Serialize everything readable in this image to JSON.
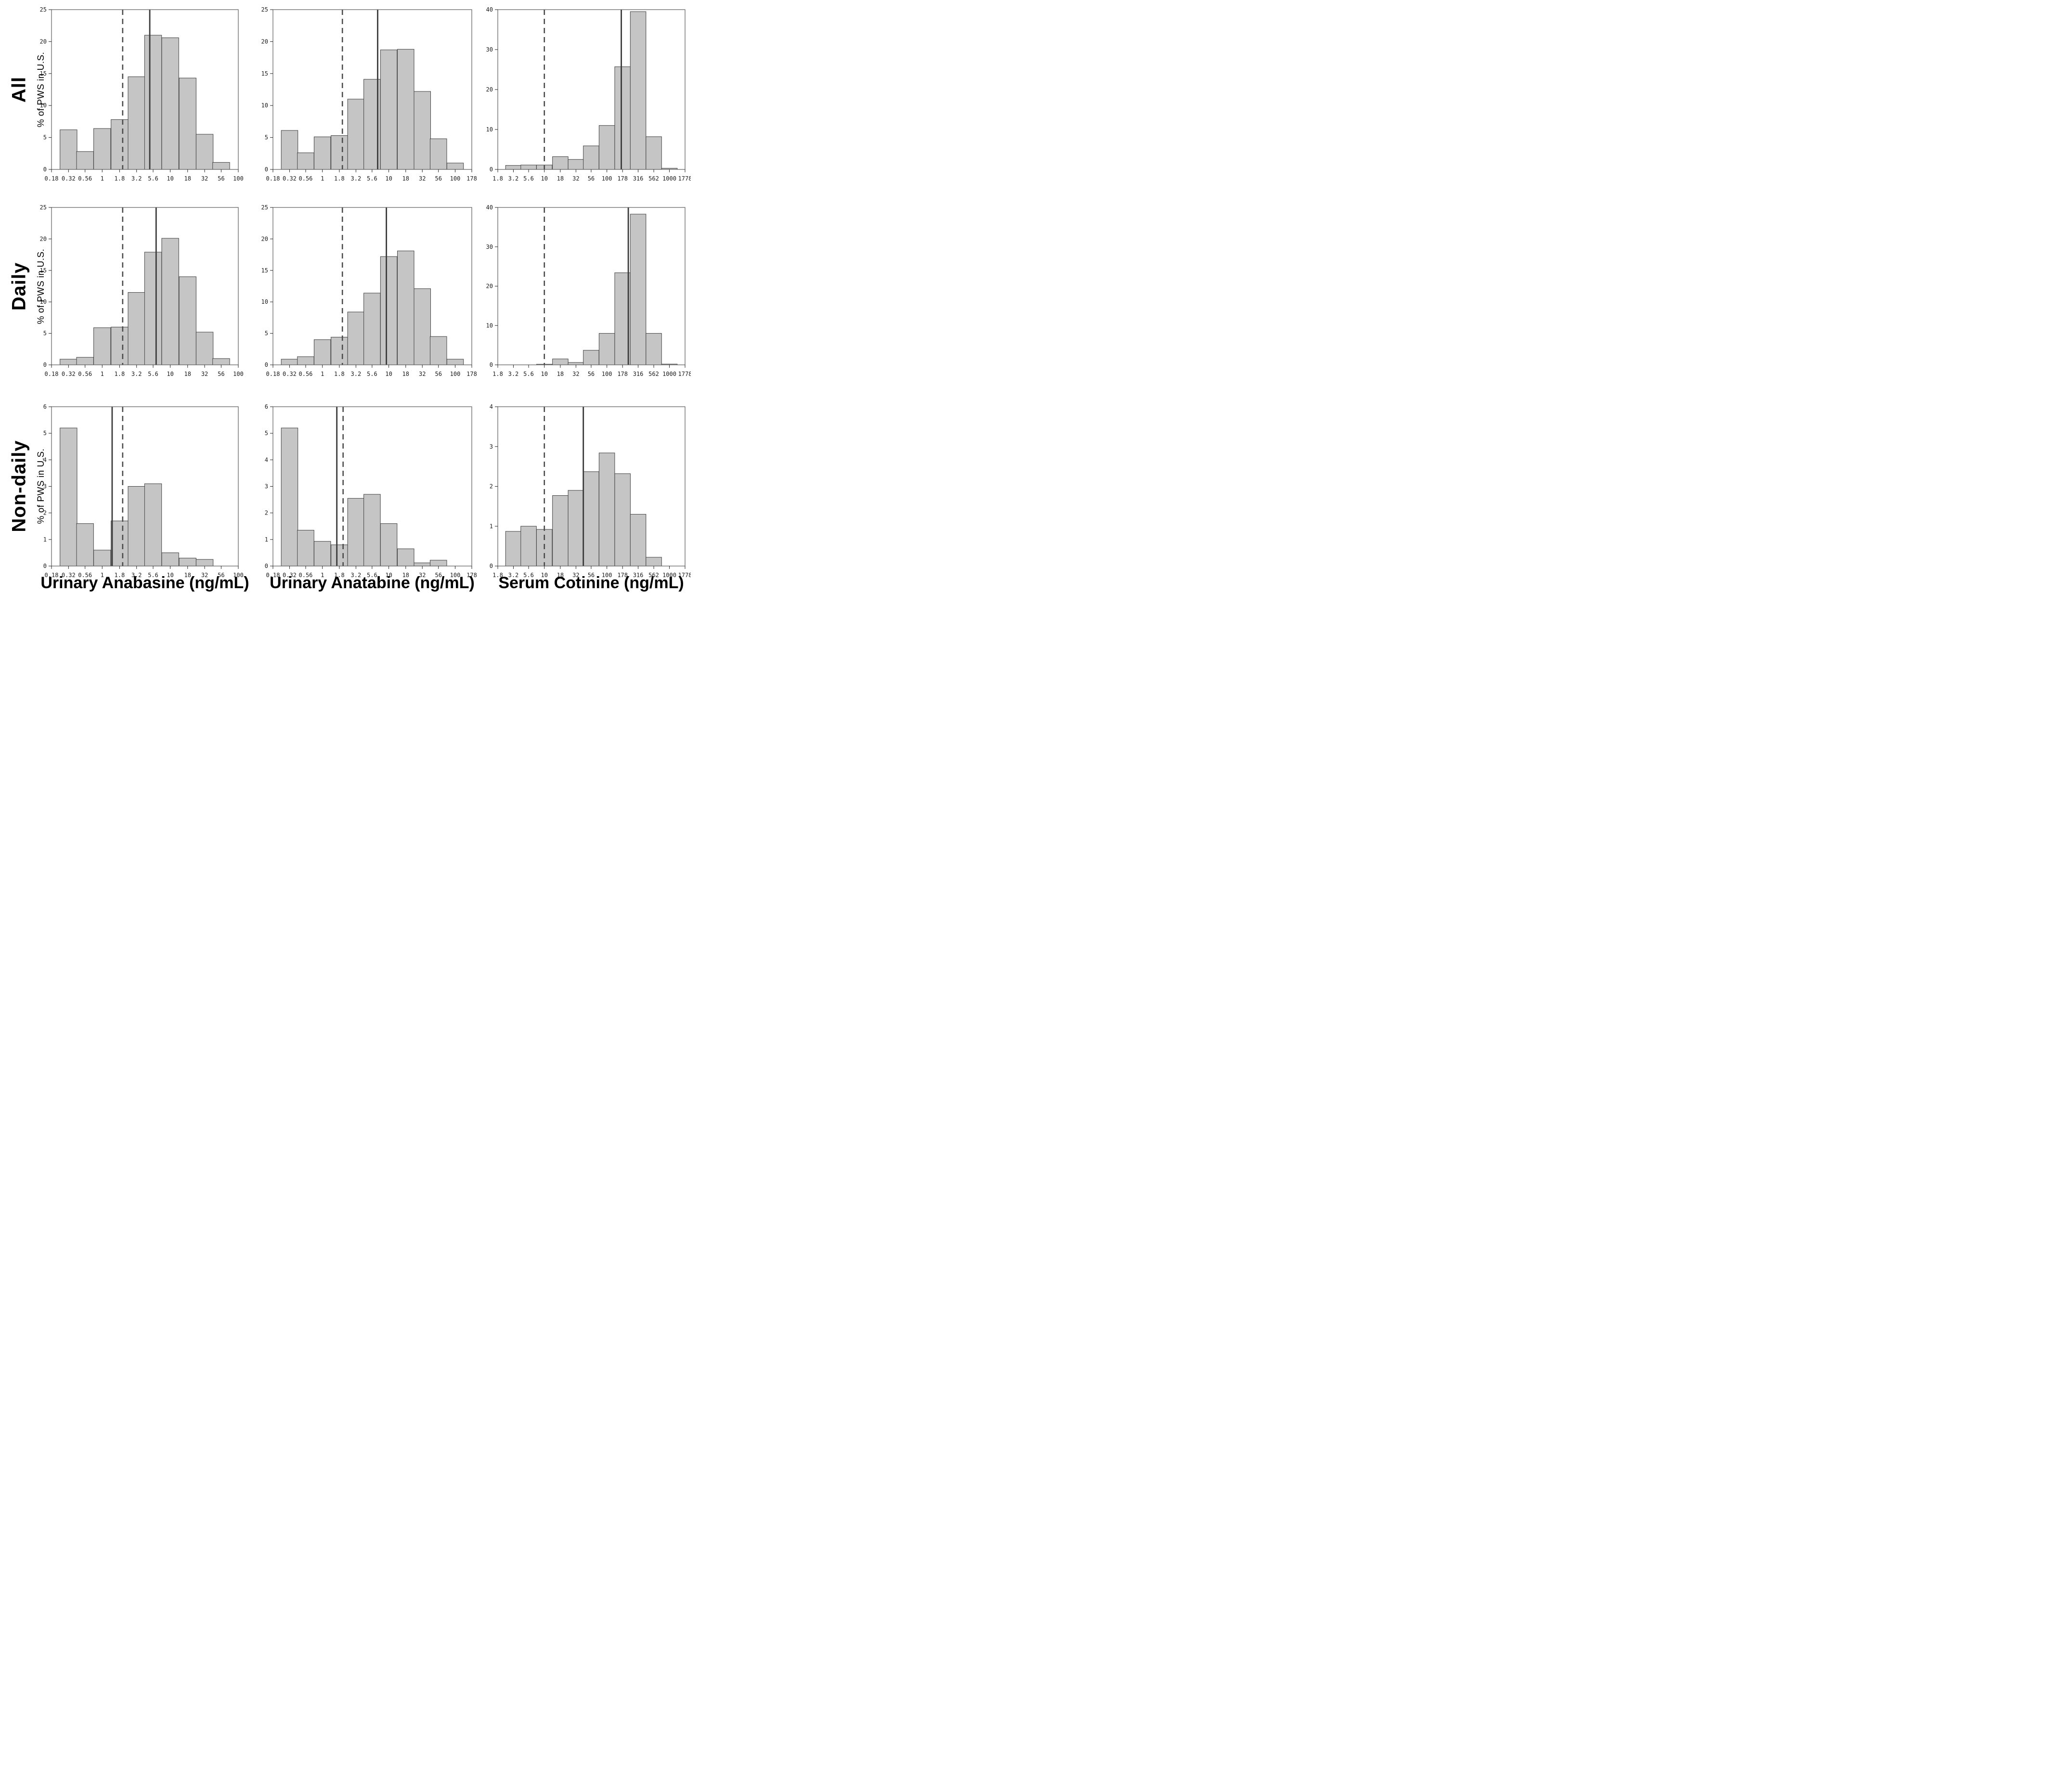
{
  "figure": {
    "row_labels": [
      "All",
      "Daily",
      "Non-daily"
    ],
    "y_axis_label": "% of PWS in U.S.",
    "column_titles": [
      "Urinary Anabasine (ng/mL)",
      "Urinary Anatabine (ng/mL)",
      "Serum Cotinine (ng/mL)"
    ],
    "colors": {
      "background": "#ffffff",
      "bar_fill": "#c5c5c5",
      "bar_stroke": "#3f3f3f",
      "ref_solid": "#3a3a3a",
      "ref_dashed": "#4a4a4a",
      "frame": "#5a5a5a",
      "tick": "#222222"
    }
  },
  "chart_data": [
    {
      "type": "bar",
      "row": "All",
      "column": "Urinary Anabasine (ng/mL)",
      "x_scale": "log",
      "grid": false,
      "x_ticks": [
        0.18,
        0.32,
        0.56,
        1,
        1.8,
        3.2,
        5.6,
        10,
        18,
        32,
        56,
        100
      ],
      "x_tick_labels": [
        "0.18",
        "0.32",
        "0.56",
        "1",
        "1.8",
        "3.2",
        "5.6",
        "10",
        "18",
        "32",
        "56",
        "100"
      ],
      "ylim": [
        0,
        25
      ],
      "y_ticks": [
        0,
        5,
        10,
        15,
        20,
        25
      ],
      "bin_centers": [
        0.32,
        0.56,
        1,
        1.8,
        3.2,
        5.6,
        10,
        18,
        32,
        56
      ],
      "values": [
        6.2,
        2.8,
        6.4,
        7.8,
        14.5,
        21.0,
        20.6,
        14.3,
        5.5,
        1.1
      ],
      "dashed_ref_x": 2.0,
      "solid_ref_x": 5.0
    },
    {
      "type": "bar",
      "row": "All",
      "column": "Urinary Anatabine (ng/mL)",
      "x_scale": "log",
      "grid": false,
      "x_ticks": [
        0.18,
        0.32,
        0.56,
        1,
        1.8,
        3.2,
        5.6,
        10,
        18,
        32,
        56,
        100,
        178
      ],
      "x_tick_labels": [
        "0.18",
        "0.32",
        "0.56",
        "1",
        "1.8",
        "3.2",
        "5.6",
        "10",
        "18",
        "32",
        "56",
        "100",
        "178"
      ],
      "ylim": [
        0,
        25
      ],
      "y_ticks": [
        0,
        5,
        10,
        15,
        20,
        25
      ],
      "bin_centers": [
        0.32,
        0.56,
        1,
        1.8,
        3.2,
        5.6,
        10,
        18,
        32,
        56,
        100
      ],
      "values": [
        6.1,
        2.6,
        5.1,
        5.3,
        11.0,
        14.1,
        18.7,
        18.8,
        12.2,
        4.8,
        1.0
      ],
      "dashed_ref_x": 2.0,
      "solid_ref_x": 6.8
    },
    {
      "type": "bar",
      "row": "All",
      "column": "Serum Cotinine (ng/mL)",
      "x_scale": "log",
      "grid": false,
      "x_ticks": [
        1.8,
        3.2,
        5.6,
        10,
        18,
        32,
        56,
        100,
        178,
        316,
        562,
        1000,
        1778
      ],
      "x_tick_labels": [
        "1.8",
        "3.2",
        "5.6",
        "10",
        "18",
        "32",
        "56",
        "100",
        "178",
        "316",
        "562",
        "1000",
        "1778"
      ],
      "ylim": [
        0,
        40
      ],
      "y_ticks": [
        0,
        10,
        20,
        30,
        40
      ],
      "bin_centers": [
        3.2,
        5.6,
        10,
        18,
        32,
        56,
        100,
        178,
        316,
        562,
        1000
      ],
      "values": [
        1.0,
        1.1,
        1.1,
        3.2,
        2.5,
        5.9,
        11.0,
        25.7,
        39.5,
        8.2,
        0.3
      ],
      "dashed_ref_x": 10,
      "solid_ref_x": 170
    },
    {
      "type": "bar",
      "row": "Daily",
      "column": "Urinary Anabasine (ng/mL)",
      "x_scale": "log",
      "grid": false,
      "x_ticks": [
        0.18,
        0.32,
        0.56,
        1,
        1.8,
        3.2,
        5.6,
        10,
        18,
        32,
        56,
        100
      ],
      "x_tick_labels": [
        "0.18",
        "0.32",
        "0.56",
        "1",
        "1.8",
        "3.2",
        "5.6",
        "10",
        "18",
        "32",
        "56",
        "100"
      ],
      "ylim": [
        0,
        25
      ],
      "y_ticks": [
        0,
        5,
        10,
        15,
        20,
        25
      ],
      "bin_centers": [
        0.32,
        0.56,
        1,
        1.8,
        3.2,
        5.6,
        10,
        18,
        32,
        56
      ],
      "values": [
        0.9,
        1.2,
        5.9,
        6.0,
        11.5,
        17.9,
        20.1,
        14.0,
        5.2,
        1.0
      ],
      "dashed_ref_x": 2.0,
      "solid_ref_x": 6.2
    },
    {
      "type": "bar",
      "row": "Daily",
      "column": "Urinary Anatabine (ng/mL)",
      "x_scale": "log",
      "grid": false,
      "x_ticks": [
        0.18,
        0.32,
        0.56,
        1,
        1.8,
        3.2,
        5.6,
        10,
        18,
        32,
        56,
        100,
        178
      ],
      "x_tick_labels": [
        "0.18",
        "0.32",
        "0.56",
        "1",
        "1.8",
        "3.2",
        "5.6",
        "10",
        "18",
        "32",
        "56",
        "100",
        "178"
      ],
      "ylim": [
        0,
        25
      ],
      "y_ticks": [
        0,
        5,
        10,
        15,
        20,
        25
      ],
      "bin_centers": [
        0.32,
        0.56,
        1,
        1.8,
        3.2,
        5.6,
        10,
        18,
        32,
        56,
        100
      ],
      "values": [
        0.9,
        1.3,
        4.0,
        4.4,
        8.4,
        11.4,
        17.2,
        18.1,
        12.1,
        4.5,
        0.9
      ],
      "dashed_ref_x": 2.0,
      "solid_ref_x": 9.2
    },
    {
      "type": "bar",
      "row": "Daily",
      "column": "Serum Cotinine (ng/mL)",
      "x_scale": "log",
      "grid": false,
      "x_ticks": [
        1.8,
        3.2,
        5.6,
        10,
        18,
        32,
        56,
        100,
        178,
        316,
        562,
        1000,
        1778
      ],
      "x_tick_labels": [
        "1.8",
        "3.2",
        "5.6",
        "10",
        "18",
        "32",
        "56",
        "100",
        "178",
        "316",
        "562",
        "1000",
        "1778"
      ],
      "ylim": [
        0,
        40
      ],
      "y_ticks": [
        0,
        10,
        20,
        30,
        40
      ],
      "bin_centers": [
        10,
        18,
        32,
        56,
        100,
        178,
        316,
        562,
        1000
      ],
      "values": [
        0.15,
        1.5,
        0.6,
        3.7,
        8.0,
        23.4,
        38.3,
        8.0,
        0.2
      ],
      "dashed_ref_x": 10,
      "solid_ref_x": 220
    },
    {
      "type": "bar",
      "row": "Non-daily",
      "column": "Urinary Anabasine (ng/mL)",
      "x_scale": "log",
      "grid": false,
      "x_ticks": [
        0.18,
        0.32,
        0.56,
        1,
        1.8,
        3.2,
        5.6,
        10,
        18,
        32,
        56,
        100
      ],
      "x_tick_labels": [
        "0.18",
        "0.32",
        "0.56",
        "1",
        "1.8",
        "3.2",
        "5.6",
        "10",
        "18",
        "32",
        "56",
        "100"
      ],
      "ylim": [
        0,
        6
      ],
      "y_ticks": [
        0,
        1,
        2,
        3,
        4,
        5,
        6
      ],
      "bin_centers": [
        0.32,
        0.56,
        1,
        1.8,
        3.2,
        5.6,
        10,
        18,
        32
      ],
      "values": [
        5.2,
        1.6,
        0.6,
        1.7,
        3.0,
        3.1,
        0.5,
        0.3,
        0.25
      ],
      "dashed_ref_x": 2.0,
      "solid_ref_x": 1.4
    },
    {
      "type": "bar",
      "row": "Non-daily",
      "column": "Urinary Anatabine (ng/mL)",
      "x_scale": "log",
      "grid": false,
      "x_ticks": [
        0.18,
        0.32,
        0.56,
        1,
        1.8,
        3.2,
        5.6,
        10,
        18,
        32,
        56,
        100,
        178
      ],
      "x_tick_labels": [
        "0.18",
        "0.32",
        "0.56",
        "1",
        "1.8",
        "3.2",
        "5.6",
        "10",
        "18",
        "32",
        "56",
        "100",
        "178"
      ],
      "ylim": [
        0,
        6
      ],
      "y_ticks": [
        0,
        1,
        2,
        3,
        4,
        5,
        6
      ],
      "bin_centers": [
        0.32,
        0.56,
        1,
        1.8,
        3.2,
        5.6,
        10,
        18,
        32,
        56
      ],
      "values": [
        5.2,
        1.35,
        0.93,
        0.8,
        2.55,
        2.7,
        1.6,
        0.65,
        0.12,
        0.22
      ],
      "dashed_ref_x": 2.05,
      "solid_ref_x": 1.65
    },
    {
      "type": "bar",
      "row": "Non-daily",
      "column": "Serum Cotinine (ng/mL)",
      "x_scale": "log",
      "grid": false,
      "x_ticks": [
        1.8,
        3.2,
        5.6,
        10,
        18,
        32,
        56,
        100,
        178,
        316,
        562,
        1000,
        1778
      ],
      "x_tick_labels": [
        "1.8",
        "3.2",
        "5.6",
        "10",
        "18",
        "32",
        "56",
        "100",
        "178",
        "316",
        "562",
        "1000",
        "1778"
      ],
      "ylim": [
        0,
        4
      ],
      "y_ticks": [
        0,
        1,
        2,
        3,
        4
      ],
      "bin_centers": [
        3.2,
        5.6,
        10,
        18,
        32,
        56,
        100,
        178,
        316,
        562
      ],
      "values": [
        0.87,
        1.0,
        0.92,
        1.77,
        1.9,
        2.37,
        2.84,
        2.32,
        1.3,
        0.22
      ],
      "dashed_ref_x": 10,
      "solid_ref_x": 42
    }
  ]
}
